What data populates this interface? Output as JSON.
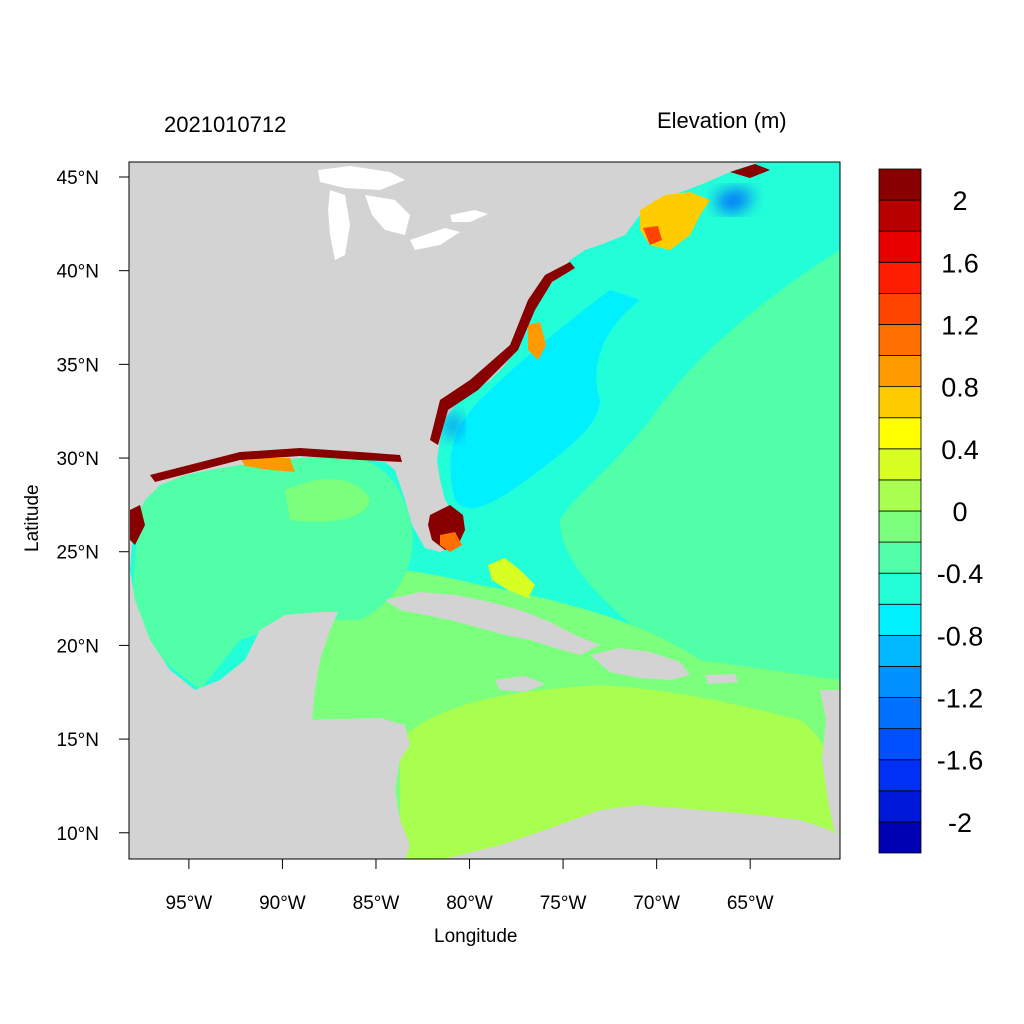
{
  "title_left": "2021010712",
  "title_right": "Elevation (m)",
  "xlabel": "Longitude",
  "ylabel": "Latitude",
  "x_ticks": [
    {
      "lon": -95,
      "label": "95°W"
    },
    {
      "lon": -90,
      "label": "90°W"
    },
    {
      "lon": -85,
      "label": "85°W"
    },
    {
      "lon": -80,
      "label": "80°W"
    },
    {
      "lon": -75,
      "label": "75°W"
    },
    {
      "lon": -70,
      "label": "70°W"
    },
    {
      "lon": -65,
      "label": "65°W"
    }
  ],
  "y_ticks": [
    {
      "lat": 45,
      "label": "45°N"
    },
    {
      "lat": 40,
      "label": "40°N"
    },
    {
      "lat": 35,
      "label": "35°N"
    },
    {
      "lat": 30,
      "label": "30°N"
    },
    {
      "lat": 25,
      "label": "25°N"
    },
    {
      "lat": 20,
      "label": "20°N"
    },
    {
      "lat": 15,
      "label": "15°N"
    },
    {
      "lat": 10,
      "label": "10°N"
    }
  ],
  "extent": {
    "lon_min": -98.2,
    "lon_max": -60.2,
    "lat_min": 8.6,
    "lat_max": 45.8
  },
  "colorbar": {
    "levels": [
      -2.2,
      -2.0,
      -1.8,
      -1.6,
      -1.4,
      -1.2,
      -1.0,
      -0.8,
      -0.6,
      -0.4,
      -0.2,
      0.0,
      0.2,
      0.4,
      0.6,
      0.8,
      1.0,
      1.2,
      1.4,
      1.6,
      1.8,
      2.0,
      2.2
    ],
    "colors": [
      "#0000b3",
      "#0018d8",
      "#0030f5",
      "#0050ff",
      "#0070ff",
      "#0090ff",
      "#00b8ff",
      "#00f0ff",
      "#22ffd8",
      "#50ffa8",
      "#7cff7c",
      "#a8ff50",
      "#d8ff22",
      "#ffff00",
      "#ffcc00",
      "#ff9900",
      "#ff7000",
      "#ff4400",
      "#ff1e00",
      "#e80000",
      "#b80000",
      "#880000"
    ],
    "labels": [
      {
        "value": 2.0,
        "text": "2"
      },
      {
        "value": 1.6,
        "text": "1.6"
      },
      {
        "value": 1.2,
        "text": "1.2"
      },
      {
        "value": 0.8,
        "text": "0.8"
      },
      {
        "value": 0.4,
        "text": "0.4"
      },
      {
        "value": 0.0,
        "text": "0"
      },
      {
        "value": -0.4,
        "text": "-0.4"
      },
      {
        "value": -0.8,
        "text": "-0.8"
      },
      {
        "value": -1.2,
        "text": "-1.2"
      },
      {
        "value": -1.6,
        "text": "-1.6"
      },
      {
        "value": -2.0,
        "text": "-2"
      }
    ]
  },
  "land_color": "#d3d3d3",
  "background_color": "#ffffff"
}
